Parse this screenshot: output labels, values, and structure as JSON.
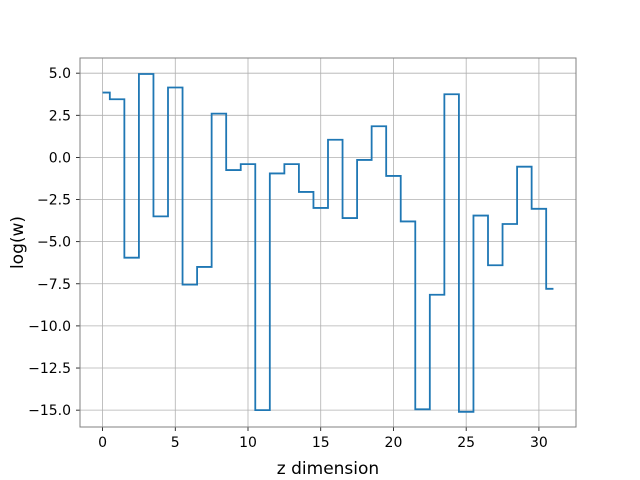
{
  "chart_data": {
    "type": "line",
    "drawstyle": "steps-mid",
    "xlabel": "z dimension",
    "ylabel": "log(w)",
    "xlim": [
      -1.55,
      32.55
    ],
    "ylim": [
      -16.0,
      5.9
    ],
    "grid": true,
    "x_ticks": [
      0,
      5,
      10,
      15,
      20,
      25,
      30
    ],
    "x_tick_labels": [
      "0",
      "5",
      "10",
      "15",
      "20",
      "25",
      "30"
    ],
    "y_ticks": [
      5.0,
      2.5,
      0.0,
      -2.5,
      -5.0,
      -7.5,
      -10.0,
      -12.5,
      -15.0
    ],
    "y_tick_labels": [
      "5.0",
      "2.5",
      "0.0",
      "−2.5",
      "−5.0",
      "−7.5",
      "−10.0",
      "−12.5",
      "−15.0"
    ],
    "x": [
      0,
      1,
      2,
      3,
      4,
      5,
      6,
      7,
      8,
      9,
      10,
      11,
      12,
      13,
      14,
      15,
      16,
      17,
      18,
      19,
      20,
      21,
      22,
      23,
      24,
      25,
      26,
      27,
      28,
      29,
      30,
      31
    ],
    "values": [
      3.85,
      3.45,
      -5.95,
      4.95,
      -3.5,
      4.15,
      -7.55,
      -6.5,
      2.6,
      -0.75,
      -0.4,
      -15.0,
      -0.95,
      -0.4,
      -2.05,
      -3.0,
      1.05,
      -3.6,
      -0.15,
      1.85,
      -1.1,
      -3.8,
      -14.95,
      -8.15,
      3.75,
      -15.1,
      -3.45,
      -6.4,
      -3.95,
      -0.55,
      -3.05,
      -7.8
    ],
    "line_color": "#1f77b4",
    "grid_color": "#b0b0b0",
    "spine_color": "#808080"
  }
}
